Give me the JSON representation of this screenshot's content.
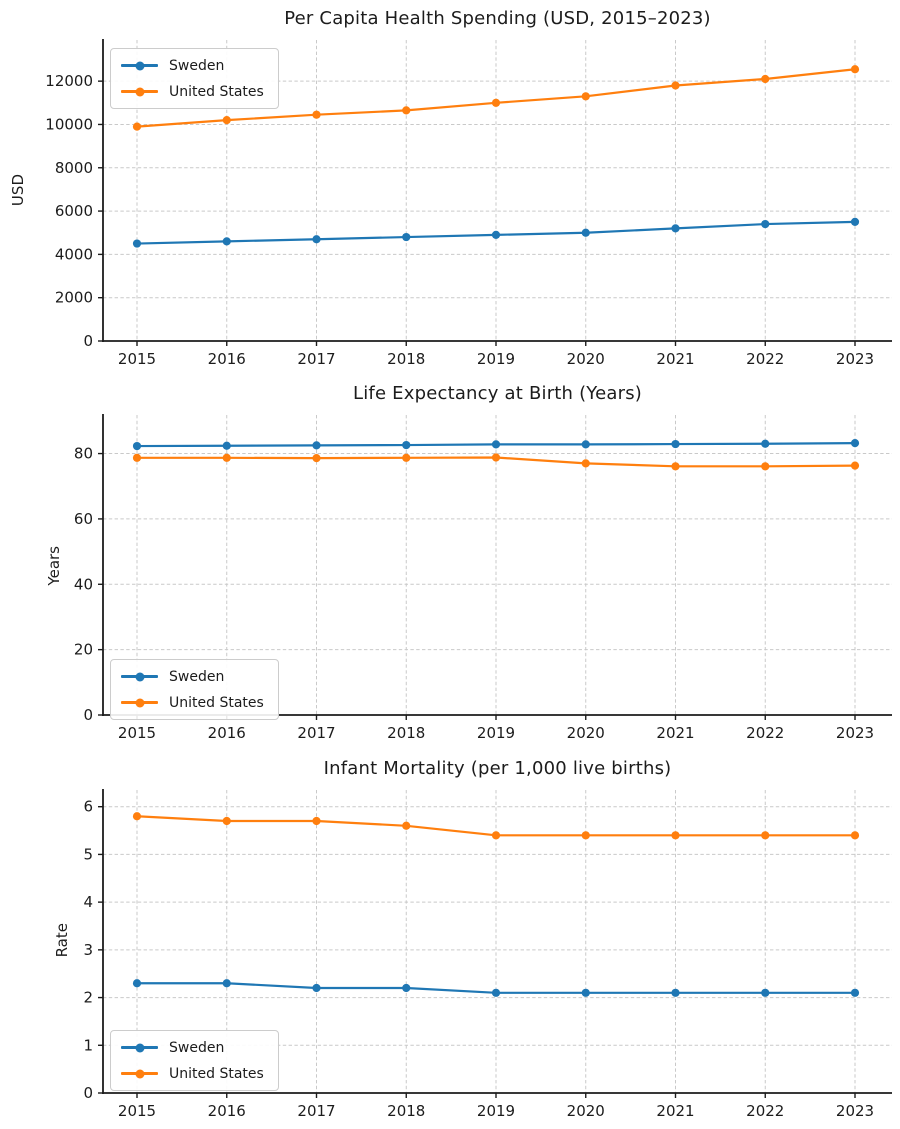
{
  "figure": {
    "background": "#ffffff",
    "text_color": "#1c1c1c",
    "grid_color": "#c9c9c9",
    "accent_blue": "#1f77b4",
    "accent_orange": "#ff7f0e"
  },
  "chart_data": [
    {
      "type": "line",
      "title": "Per Capita Health Spending (USD, 2015–2023)",
      "ylabel": "USD",
      "x": [
        2015,
        2016,
        2017,
        2018,
        2019,
        2020,
        2021,
        2022,
        2023
      ],
      "series": [
        {
          "name": "Sweden",
          "color": "#1f77b4",
          "values": [
            4500,
            4600,
            4700,
            4800,
            4900,
            5000,
            5200,
            5400,
            5500
          ]
        },
        {
          "name": "United States",
          "color": "#ff7f0e",
          "values": [
            9900,
            10200,
            10450,
            10650,
            11000,
            11300,
            11800,
            12100,
            12550
          ]
        }
      ],
      "ylim": [
        0,
        13900
      ],
      "yticks": [
        0,
        2000,
        4000,
        6000,
        8000,
        10000,
        12000
      ],
      "grid": true,
      "legend_position": "upper left"
    },
    {
      "type": "line",
      "title": "Life Expectancy at Birth (Years)",
      "ylabel": "Years",
      "x": [
        2015,
        2016,
        2017,
        2018,
        2019,
        2020,
        2021,
        2022,
        2023
      ],
      "series": [
        {
          "name": "Sweden",
          "color": "#1f77b4",
          "values": [
            82.3,
            82.4,
            82.5,
            82.6,
            82.8,
            82.8,
            82.9,
            83.0,
            83.2
          ]
        },
        {
          "name": "United States",
          "color": "#ff7f0e",
          "values": [
            78.7,
            78.7,
            78.6,
            78.7,
            78.8,
            77.0,
            76.1,
            76.1,
            76.3
          ]
        }
      ],
      "ylim": [
        0,
        91.8
      ],
      "yticks": [
        0,
        20,
        40,
        60,
        80
      ],
      "grid": true,
      "legend_position": "lower left"
    },
    {
      "type": "line",
      "title": "Infant Mortality (per 1,000 live births)",
      "ylabel": "Rate",
      "x": [
        2015,
        2016,
        2017,
        2018,
        2019,
        2020,
        2021,
        2022,
        2023
      ],
      "series": [
        {
          "name": "Sweden",
          "color": "#1f77b4",
          "values": [
            2.3,
            2.3,
            2.2,
            2.2,
            2.1,
            2.1,
            2.1,
            2.1,
            2.1
          ]
        },
        {
          "name": "United States",
          "color": "#ff7f0e",
          "values": [
            5.8,
            5.7,
            5.7,
            5.6,
            5.4,
            5.4,
            5.4,
            5.4,
            5.4
          ]
        }
      ],
      "ylim": [
        0,
        6.35
      ],
      "yticks": [
        0,
        1,
        2,
        3,
        4,
        5,
        6
      ],
      "grid": true,
      "legend_position": "lower left"
    }
  ]
}
